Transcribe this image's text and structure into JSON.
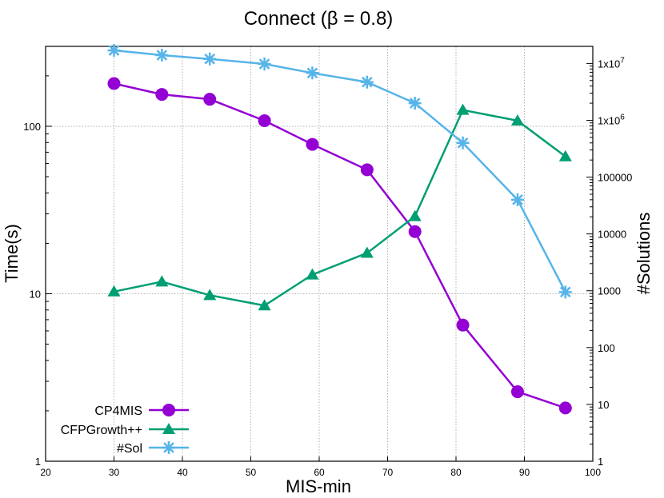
{
  "chart_data": {
    "type": "line",
    "title": "Connect (β = 0.8)",
    "xlabel": "MIS-min",
    "ylabel": "Time(s)",
    "y2label": "#Solutions",
    "xlim": [
      20,
      100
    ],
    "ylim": [
      1,
      300
    ],
    "ylim_right": [
      1,
      20000000
    ],
    "yscale": "log",
    "y2scale": "log",
    "grid": true,
    "legend_position": "bottom-left",
    "x_ticks": [
      "20",
      "30",
      "40",
      "50",
      "60",
      "70",
      "80",
      "90",
      "100"
    ],
    "y_ticks_left": [
      "1",
      "10",
      "100"
    ],
    "y_ticks_right": [
      "1",
      "10",
      "100",
      "1000",
      "10000",
      "100000",
      "1x10",
      "1x10"
    ],
    "y_ticks_right_exponents": [
      "",
      "",
      "",
      "",
      "",
      "",
      "6",
      "7"
    ],
    "series": [
      {
        "name": "CP4MIS",
        "axis": "left",
        "color": "#9400d3",
        "marker": "circle",
        "x": [
          30,
          37,
          44,
          52,
          59,
          67,
          74,
          81,
          89,
          96
        ],
        "y": [
          180,
          155,
          145,
          108,
          78,
          55,
          23.5,
          6.5,
          2.6,
          2.08
        ]
      },
      {
        "name": "CFPGrowth++",
        "axis": "left",
        "color": "#009e73",
        "marker": "triangle",
        "x": [
          30,
          37,
          44,
          52,
          59,
          67,
          74,
          81,
          89,
          96
        ],
        "y": [
          10.3,
          11.8,
          9.8,
          8.5,
          13,
          17.5,
          29,
          125,
          108,
          66
        ]
      },
      {
        "name": "#Sol",
        "axis": "right",
        "color": "#56b4e9",
        "marker": "star",
        "x": [
          30,
          37,
          44,
          52,
          59,
          67,
          74,
          81,
          89,
          96
        ],
        "y": [
          17000000,
          14000000,
          12000000,
          9800000,
          6800000,
          4700000,
          2000000,
          400000,
          40000,
          950
        ]
      }
    ]
  }
}
